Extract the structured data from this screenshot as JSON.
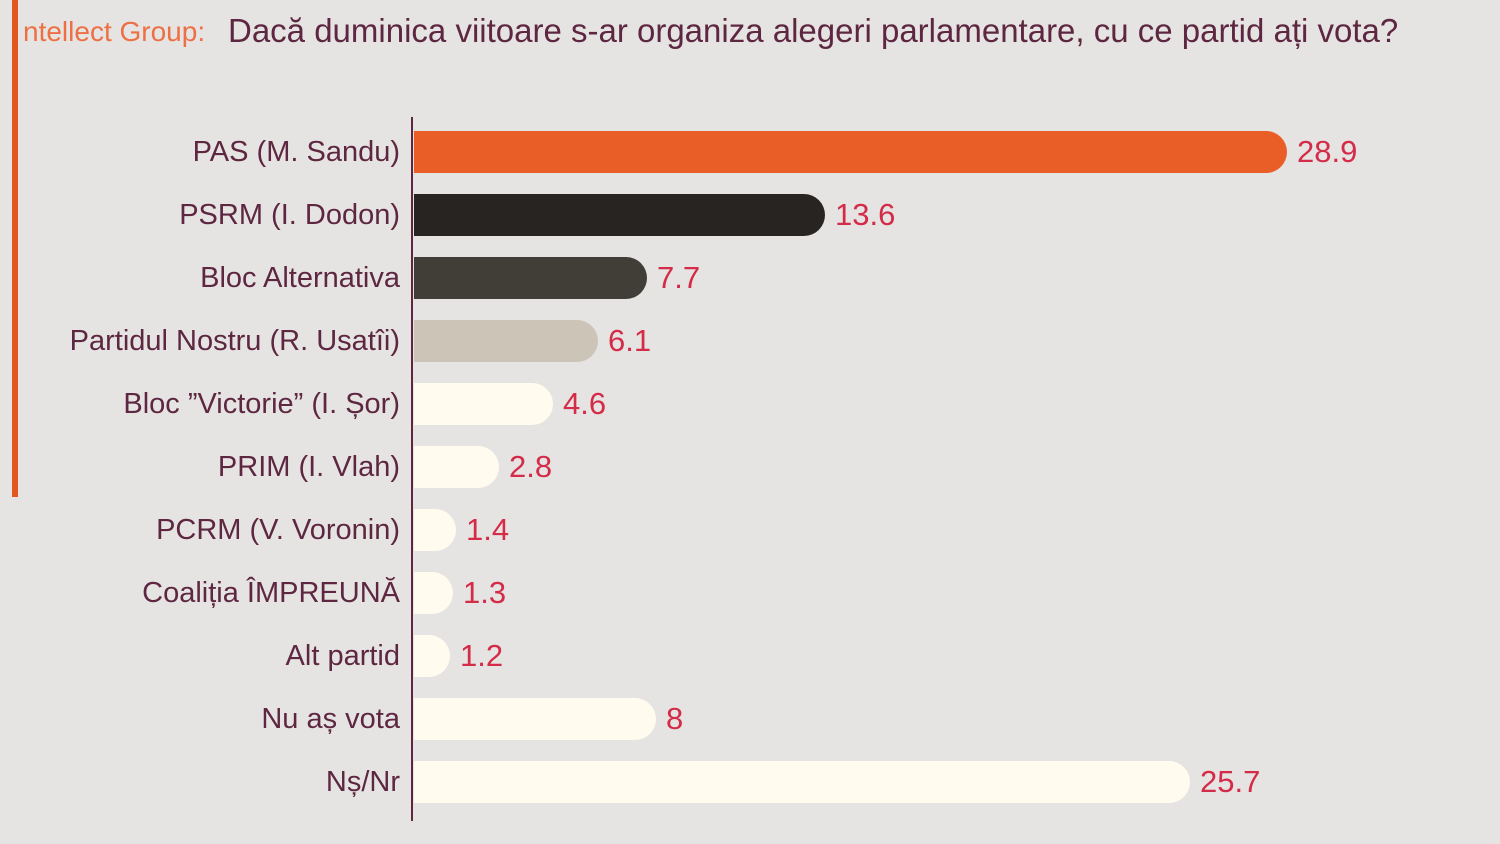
{
  "page": {
    "background_color": "#e6e4e2"
  },
  "brand": {
    "label": "ntellect Group:",
    "text_color": "#ed7045",
    "accent_bar_color": "#e1571e"
  },
  "chart_data": {
    "type": "bar",
    "orientation": "horizontal",
    "title": "Dacă duminica viitoare s-ar organiza alegeri parlamentare, cu ce partid ați vota?",
    "categories": [
      "PAS (M. Sandu)",
      "PSRM (I. Dodon)",
      "Bloc Alternativa",
      "Partidul Nostru (R. Usatîi)",
      "Bloc ”Victorie” (I. Șor)",
      "PRIM (I. Vlah)",
      "PCRM (V. Voronin)",
      "Coaliția ÎMPREUNĂ",
      "Alt partid",
      "Nu aș vota",
      "Nș/Nr"
    ],
    "values": [
      28.9,
      13.6,
      7.7,
      6.1,
      4.6,
      2.8,
      1.4,
      1.3,
      1.2,
      8,
      25.7
    ],
    "value_labels": [
      "28.9",
      "13.6",
      "7.7",
      "6.1",
      "4.6",
      "2.8",
      "1.4",
      "1.3",
      "1.2",
      "8",
      "25.7"
    ],
    "bar_colors": [
      "#e95e26",
      "#272422",
      "#413d37",
      "#cbc4b7",
      "#fffbee",
      "#fffbee",
      "#fffbee",
      "#fffbee",
      "#fffbee",
      "#fffbee",
      "#fffbee"
    ],
    "xlim": [
      0,
      36
    ],
    "grid": false,
    "legend": false,
    "xlabel": "",
    "ylabel": "",
    "title_color": "#5e2741",
    "label_color": "#5e2741",
    "value_color": "#d32b48",
    "axis_color": "#5e2741"
  }
}
